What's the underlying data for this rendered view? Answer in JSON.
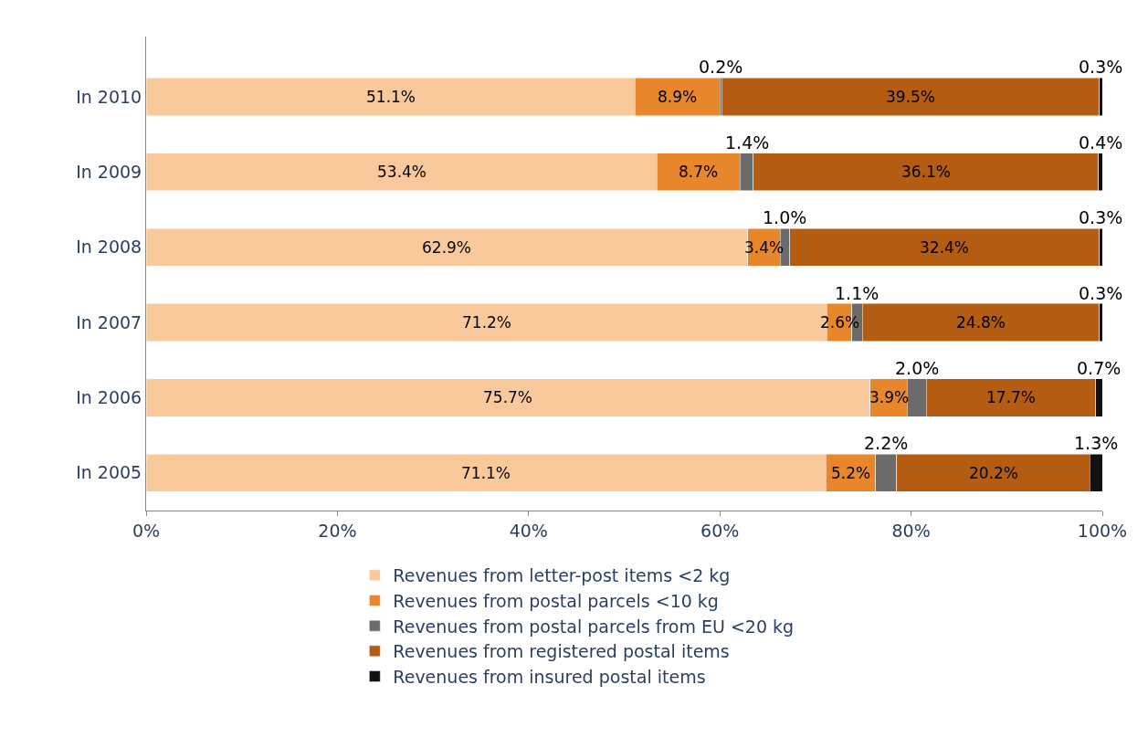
{
  "chart_data": {
    "type": "bar",
    "orientation": "horizontal",
    "stacked": true,
    "legend": "bottom",
    "categories": [
      "In 2010",
      "In 2009",
      "In 2008",
      "In 2007",
      "In 2006",
      "In 2005"
    ],
    "xlim": [
      0,
      100
    ],
    "xticks": [
      {
        "value": 0,
        "label": "0%"
      },
      {
        "value": 20,
        "label": "20%"
      },
      {
        "value": 40,
        "label": "40%"
      },
      {
        "value": 60,
        "label": "60%"
      },
      {
        "value": 80,
        "label": "80%"
      },
      {
        "value": 100,
        "label": "100%"
      }
    ],
    "series": [
      {
        "name": "Revenues from letter-post items <2 kg",
        "color": "#f9c99c",
        "values": [
          51.1,
          53.4,
          62.9,
          71.2,
          75.7,
          71.1
        ],
        "value_labels": [
          "51.1%",
          "53.4%",
          "62.9%",
          "71.2%",
          "75.7%",
          "71.1%"
        ]
      },
      {
        "name": "Revenues from postal parcels <10 kg",
        "color": "#e8862c",
        "values": [
          8.9,
          8.7,
          3.4,
          2.6,
          3.9,
          5.2
        ],
        "value_labels": [
          "8.9%",
          "8.7%",
          "3.4%",
          "2.6%",
          "3.9%",
          "5.2%"
        ]
      },
      {
        "name": "Revenues from postal parcels from EU <20 kg",
        "color": "#6b6b6b",
        "values": [
          0.2,
          1.4,
          1.0,
          1.1,
          2.0,
          2.2
        ],
        "value_labels": [
          "0.2%",
          "1.4%",
          "1.0%",
          "1.1%",
          "2.0%",
          "2.2%"
        ]
      },
      {
        "name": "Revenues from registered postal items",
        "color": "#b35c12",
        "values": [
          39.5,
          36.1,
          32.4,
          24.8,
          17.7,
          20.2
        ],
        "value_labels": [
          "39.5%",
          "36.1%",
          "32.4%",
          "24.8%",
          "17.7%",
          "20.2%"
        ]
      },
      {
        "name": "Revenues from insured postal items",
        "color": "#111111",
        "values": [
          0.3,
          0.4,
          0.3,
          0.3,
          0.7,
          1.3
        ],
        "value_labels": [
          "0.3%",
          "0.4%",
          "0.3%",
          "0.3%",
          "0.7%",
          "1.3%"
        ]
      }
    ]
  }
}
